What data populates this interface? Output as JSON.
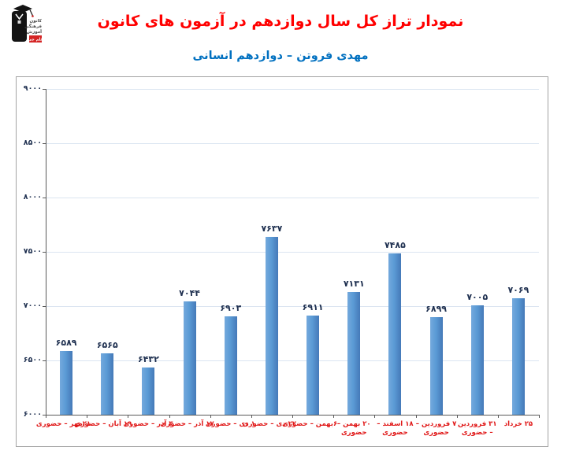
{
  "header": {
    "title": "نمودار تراز کل سال دوازدهم در آزمون های کانون",
    "subtitle": "مهدی فروتن – دوازدهم انسانی",
    "logo": {
      "alt": "کانون فرهنگی آموزش",
      "text_lines": [
        "کانون",
        "فرهنگی",
        "آموزش"
      ],
      "badge": "قلم چی"
    }
  },
  "colors": {
    "title_red": "#ff0000",
    "subtitle_blue": "#0070c0",
    "bar_blue": "#5b9bd5",
    "value_label_navy": "#1f3050",
    "category_label_red": "#e01717",
    "gridline": "#dbe5f1",
    "axis_gray": "#595959"
  },
  "chart_data": {
    "type": "bar",
    "title": "نمودار تراز کل سال دوازدهم در آزمون های کانون",
    "subtitle": "مهدی فروتن – دوازدهم انسانی",
    "categories": [
      "۲۱مهر – حضوری",
      "۱۹ آبان – حضوری",
      "۳ آذر – حضوری",
      "۱۷ آذر – حضوری",
      "۱ دی – حضوری",
      "۲۲ دی – حضوری",
      "۶بهمن – حضوری",
      "۲۰ بهمن – حضوری",
      "۱۸ اسفند – حضوری",
      "۷ فروردین – حضوری",
      "۳۱ فروردین – حضوری",
      "۲۵ خرداد"
    ],
    "values": [
      6589,
      6565,
      6432,
      7044,
      6903,
      7637,
      6911,
      7131,
      7485,
      6899,
      7005,
      7069
    ],
    "value_labels": [
      "۶۵۸۹",
      "۶۵۶۵",
      "۶۴۳۲",
      "۷۰۴۴",
      "۶۹۰۳",
      "۷۶۳۷",
      "۶۹۱۱",
      "۷۱۳۱",
      "۷۴۸۵",
      "۶۸۹۹",
      "۷۰۰۵",
      "۷۰۶۹"
    ],
    "y_tick_values": [
      6000,
      6500,
      7000,
      7500,
      8000,
      8500,
      9000
    ],
    "y_tick_labels": [
      "۶۰۰۰",
      "۶۵۰۰",
      "۷۰۰۰",
      "۷۵۰۰",
      "۸۰۰۰",
      "۸۵۰۰",
      "۹۰۰۰"
    ],
    "ylim": [
      6000,
      9000
    ],
    "xlabel": "",
    "ylabel": "",
    "grid": true,
    "legend": false
  }
}
